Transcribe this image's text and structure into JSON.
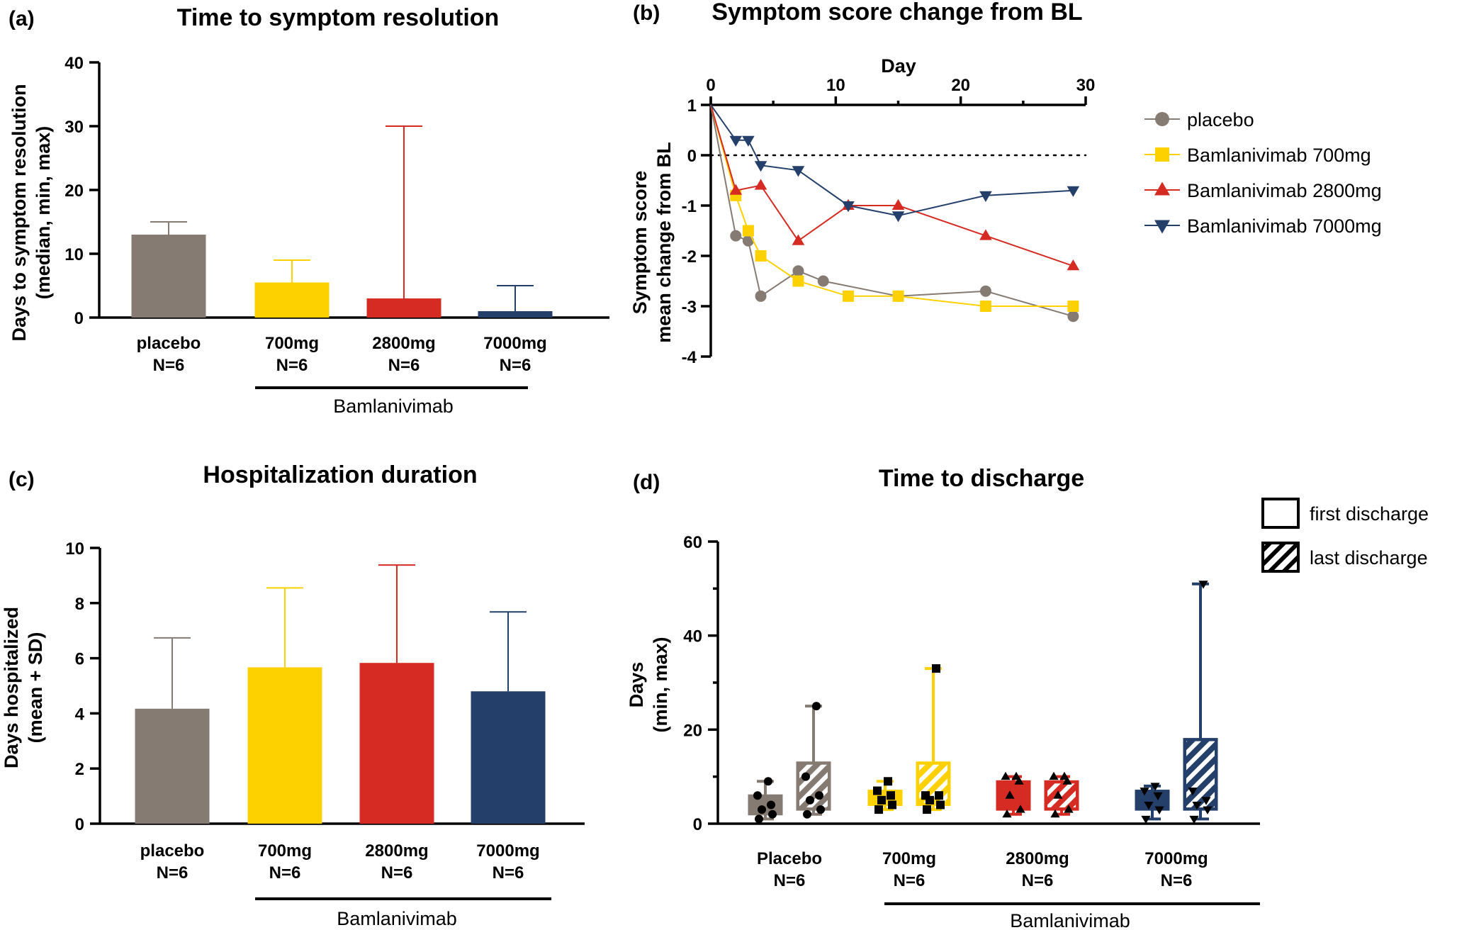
{
  "colors": {
    "placebo": "#857b72",
    "b700": "#fdd100",
    "b2800": "#d62b22",
    "b7000": "#253f6b"
  },
  "icons": [
    "hatch-pattern",
    "circle-marker",
    "square-marker",
    "triangle-up-marker",
    "triangle-down-marker"
  ],
  "chart_data": [
    {
      "id": "a",
      "panel_label": "(a)",
      "type": "bar",
      "title": "Time to symptom resolution",
      "ylabel_lines": [
        "Days to symptom resolution",
        "(median, min, max)"
      ],
      "ylim": [
        0,
        40
      ],
      "yticks": [
        "0",
        "10",
        "20",
        "30",
        "40"
      ],
      "categories": [
        {
          "label": "placebo",
          "n": "N=6",
          "median": 13,
          "min": 13,
          "max": 15,
          "color": "#857b72"
        },
        {
          "label": "700mg",
          "n": "N=6",
          "median": 5.5,
          "min": 5.5,
          "max": 9,
          "color": "#fdd100"
        },
        {
          "label": "2800mg",
          "n": "N=6",
          "median": 3,
          "min": 3,
          "max": 30,
          "color": "#d62b22"
        },
        {
          "label": "7000mg",
          "n": "N=6",
          "median": 1,
          "min": 1,
          "max": 5,
          "color": "#253f6b"
        }
      ],
      "group_label": "Bamlanivimab"
    },
    {
      "id": "b",
      "panel_label": "(b)",
      "type": "line",
      "title": "Symptom score change from BL",
      "xlabel": "Day",
      "ylabel_lines": [
        "Symptom score",
        "mean change from BL"
      ],
      "xlim": [
        0,
        30
      ],
      "xticks": [
        "0",
        "10",
        "20",
        "30"
      ],
      "ylim": [
        -4,
        1
      ],
      "yticks": [
        "1",
        "0",
        "-1",
        "-2",
        "-3",
        "-4"
      ],
      "legend_position": "right",
      "series": [
        {
          "name": "placebo",
          "marker": "circle",
          "color": "#857b72",
          "x": [
            0,
            2,
            3,
            4,
            7,
            9,
            15,
            22,
            29
          ],
          "y": [
            1,
            -1.6,
            -1.7,
            -2.8,
            -2.3,
            -2.5,
            -2.8,
            -2.7,
            -3.2
          ]
        },
        {
          "name": "Bamlanivimab 700mg",
          "marker": "square",
          "color": "#fdd100",
          "x": [
            0,
            2,
            3,
            4,
            7,
            11,
            15,
            22,
            29
          ],
          "y": [
            1,
            -0.8,
            -1.5,
            -2.0,
            -2.5,
            -2.8,
            -2.8,
            -3.0,
            -3.0
          ]
        },
        {
          "name": "Bamlanivimab 2800mg",
          "marker": "triangle-up",
          "color": "#d62b22",
          "x": [
            0,
            2,
            4,
            7,
            11,
            15,
            22,
            29
          ],
          "y": [
            1,
            -0.7,
            -0.6,
            -1.7,
            -1.0,
            -1.0,
            -1.6,
            -2.2
          ]
        },
        {
          "name": "Bamlanivimab 7000mg",
          "marker": "triangle-down",
          "color": "#253f6b",
          "x": [
            0,
            2,
            3,
            4,
            7,
            11,
            15,
            22,
            29
          ],
          "y": [
            1,
            0.3,
            0.3,
            -0.2,
            -0.3,
            -1.0,
            -1.2,
            -0.8,
            -0.7
          ]
        }
      ]
    },
    {
      "id": "c",
      "panel_label": "(c)",
      "type": "bar",
      "title": "Hospitalization duration",
      "ylabel_lines": [
        "Days hospitalized",
        "(mean + SD)"
      ],
      "ylim": [
        0,
        10
      ],
      "yticks": [
        "0",
        "2",
        "4",
        "6",
        "8",
        "10"
      ],
      "categories": [
        {
          "label": "placebo",
          "n": "N=6",
          "mean": 4.17,
          "sd": 2.57,
          "color": "#857b72"
        },
        {
          "label": "700mg",
          "n": "N=6",
          "mean": 5.67,
          "sd": 2.88,
          "color": "#fdd100"
        },
        {
          "label": "2800mg",
          "n": "N=6",
          "mean": 5.83,
          "sd": 3.55,
          "color": "#d62b22"
        },
        {
          "label": "7000mg",
          "n": "N=6",
          "mean": 4.8,
          "sd": 2.88,
          "color": "#253f6b"
        }
      ],
      "group_label": "Bamlanivimab"
    },
    {
      "id": "d",
      "panel_label": "(d)",
      "type": "box",
      "title": "Time to discharge",
      "ylabel_lines": [
        "Days",
        "(min, max)"
      ],
      "ylim": [
        0,
        60
      ],
      "yticks": [
        "0",
        "20",
        "40",
        "60"
      ],
      "legend": [
        {
          "label": "first discharge",
          "style": "solid"
        },
        {
          "label": "last discharge",
          "style": "hatched"
        }
      ],
      "legend_position": "top-right",
      "groups": [
        {
          "label": "Placebo",
          "n": "N=6",
          "color": "#857b72",
          "marker": "circle",
          "first": {
            "min": 1,
            "q1": 2,
            "q3": 6,
            "max": 9,
            "points": [
              1,
              2,
              3,
              4,
              6,
              9
            ]
          },
          "last": {
            "min": 2,
            "q1": 3,
            "q3": 13,
            "max": 25,
            "points": [
              2,
              3,
              5,
              6,
              10,
              25
            ]
          }
        },
        {
          "label": "700mg",
          "n": "N=6",
          "color": "#fdd100",
          "marker": "square",
          "first": {
            "min": 3,
            "q1": 4,
            "q3": 7,
            "max": 9,
            "points": [
              3,
              4,
              5,
              6,
              7,
              9
            ]
          },
          "last": {
            "min": 3,
            "q1": 4,
            "q3": 13,
            "max": 33,
            "points": [
              3,
              4,
              5,
              6,
              6,
              33
            ]
          }
        },
        {
          "label": "2800mg",
          "n": "N=6",
          "color": "#d62b22",
          "marker": "triangle-up",
          "first": {
            "min": 2,
            "q1": 3,
            "q3": 9,
            "max": 10,
            "points": [
              2,
              3,
              6,
              9,
              10,
              10
            ]
          },
          "last": {
            "min": 2,
            "q1": 3,
            "q3": 9,
            "max": 10,
            "points": [
              2,
              3,
              6,
              9,
              10,
              10
            ]
          }
        },
        {
          "label": "7000mg",
          "n": "N=6",
          "color": "#253f6b",
          "marker": "triangle-down",
          "first": {
            "min": 1,
            "q1": 3,
            "q3": 7,
            "max": 8,
            "points": [
              1,
              3,
              4,
              6,
              7,
              8
            ]
          },
          "last": {
            "min": 1,
            "q1": 3,
            "q3": 18,
            "max": 51,
            "points": [
              1,
              3,
              4,
              5,
              7,
              51
            ]
          }
        }
      ],
      "group_label": "Bamlanivimab"
    }
  ]
}
